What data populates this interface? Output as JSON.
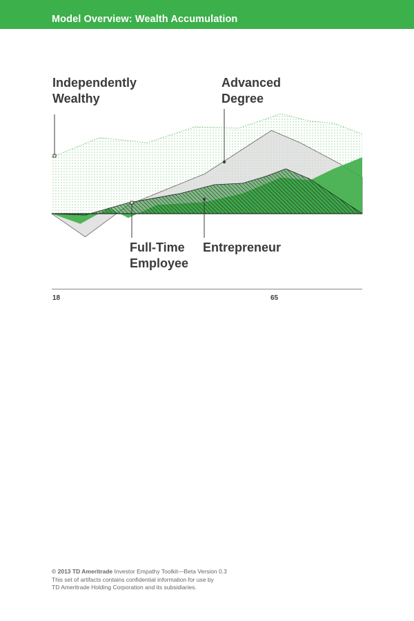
{
  "header": {
    "title": "Model Overview: Wealth Accumulation"
  },
  "colors": {
    "header_bg": "#3cb04a",
    "wealthy_dots": "#6cbf6e",
    "advanced_fill": "#d9d9d9",
    "advanced_stroke": "#7b7b7b",
    "fulltime_fill": "#3eae48",
    "entrepreneur_fill": "#2f9a3c",
    "hatch": "#1f1f1f"
  },
  "chart_data": {
    "type": "area",
    "title": "",
    "xlabel": "",
    "ylabel": "",
    "x_ticks": [
      "18",
      "65"
    ],
    "x_tick_positions": [
      18,
      65
    ],
    "xlim": [
      18,
      83
    ],
    "ylim": [
      -30,
      140
    ],
    "grid": false,
    "series": [
      {
        "name": "Independently Wealthy",
        "x": [
          18,
          28,
          38,
          48,
          57,
          66,
          72,
          77,
          83
        ],
        "y": [
          78,
          105,
          98,
          120,
          118,
          138,
          128,
          125,
          110
        ]
      },
      {
        "name": "Advanced Degree",
        "x": [
          18,
          25,
          34,
          50,
          64,
          70,
          78,
          83
        ],
        "y": [
          0,
          -32,
          12,
          55,
          115,
          98,
          70,
          50
        ]
      },
      {
        "name": "Full-Time Employee",
        "x": [
          18,
          24,
          30,
          34,
          40,
          50,
          58,
          66,
          72,
          77,
          83
        ],
        "y": [
          0,
          -14,
          8,
          -6,
          12,
          16,
          28,
          50,
          46,
          62,
          78
        ]
      },
      {
        "name": "Entrepreneur",
        "x": [
          18,
          25,
          34,
          45,
          52,
          58,
          63,
          67,
          72,
          83
        ],
        "y": [
          0,
          -2,
          15,
          28,
          40,
          42,
          52,
          62,
          48,
          0
        ]
      }
    ]
  },
  "annotations": {
    "wealthy": "Independently\nWealthy",
    "advanced": "Advanced\nDegree",
    "fulltime": "Full-Time\nEmployee",
    "entrepreneur": "Entrepreneur"
  },
  "footer": {
    "line1_bold": "© 2013 TD Ameritrade",
    "line1_rest": " Investor Empathy Toolkit—Beta Version 0.3",
    "line2": "This set of artifacts contains confidential information for use by",
    "line3": "TD Ameritrade Holding Corporation and its subsidiaries."
  }
}
